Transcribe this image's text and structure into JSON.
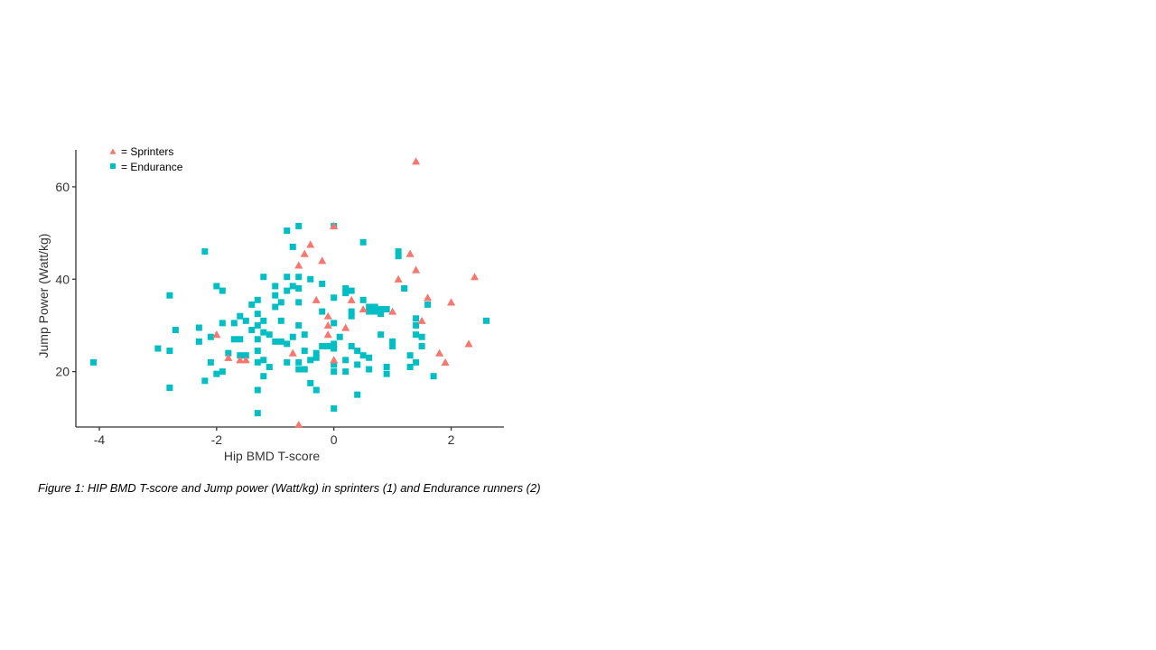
{
  "caption": "Figure 1: HIP BMD T-score and Jump power (Watt/kg) in sprinters (1) and Endurance runners (2)",
  "chart_data": {
    "type": "scatter",
    "xlabel": "Hip BMD T-score",
    "ylabel": "Jump Power (Watt/kg)",
    "xlim": [
      -4.4,
      2.9
    ],
    "ylim": [
      8,
      68
    ],
    "xticks": [
      -4,
      -2,
      0,
      2
    ],
    "yticks": [
      20,
      40,
      60
    ],
    "grid": false,
    "legend_position": "top-left",
    "series": [
      {
        "name": "= Sprinters",
        "marker": "triangle",
        "color": "#F8766D",
        "points": [
          [
            1.4,
            65.5
          ],
          [
            0,
            51.5
          ],
          [
            -0.4,
            47.5
          ],
          [
            -0.5,
            45.5
          ],
          [
            -0.2,
            44
          ],
          [
            -0.6,
            43
          ],
          [
            1.3,
            45.5
          ],
          [
            1.4,
            42
          ],
          [
            1.1,
            40
          ],
          [
            2.4,
            40.5
          ],
          [
            1.6,
            36
          ],
          [
            2.0,
            35
          ],
          [
            -0.3,
            35.5
          ],
          [
            0.3,
            35.5
          ],
          [
            0.5,
            33.5
          ],
          [
            1.0,
            33
          ],
          [
            -0.1,
            32
          ],
          [
            1.5,
            31
          ],
          [
            -0.1,
            30
          ],
          [
            0.2,
            29.5
          ],
          [
            -2.0,
            28
          ],
          [
            -0.1,
            28
          ],
          [
            2.3,
            26
          ],
          [
            -0.7,
            24
          ],
          [
            1.8,
            24
          ],
          [
            -1.8,
            23
          ],
          [
            -1.6,
            22.5
          ],
          [
            -1.5,
            22.5
          ],
          [
            0,
            22.5
          ],
          [
            1.9,
            22
          ],
          [
            -0.6,
            8.5
          ]
        ]
      },
      {
        "name": "= Endurance",
        "marker": "square",
        "color": "#00BFC4",
        "points": [
          [
            0,
            51.5
          ],
          [
            -0.6,
            51.5
          ],
          [
            -0.8,
            50.5
          ],
          [
            0.5,
            48
          ],
          [
            -0.7,
            47
          ],
          [
            -2.2,
            46
          ],
          [
            1.1,
            46
          ],
          [
            1.1,
            45
          ],
          [
            -0.8,
            40.5
          ],
          [
            -0.6,
            40.5
          ],
          [
            -1.2,
            40.5
          ],
          [
            -0.4,
            40
          ],
          [
            -0.2,
            39
          ],
          [
            -1.0,
            38.5
          ],
          [
            -2.0,
            38.5
          ],
          [
            -0.7,
            38.5
          ],
          [
            -0.6,
            38
          ],
          [
            0.2,
            38
          ],
          [
            1.2,
            38
          ],
          [
            -0.8,
            37.5
          ],
          [
            -1.9,
            37.5
          ],
          [
            0.3,
            37.5
          ],
          [
            0.2,
            37
          ],
          [
            -2.8,
            36.5
          ],
          [
            -1.0,
            36.5
          ],
          [
            0,
            36
          ],
          [
            0.5,
            35.5
          ],
          [
            -1.3,
            35.5
          ],
          [
            -0.6,
            35
          ],
          [
            -0.9,
            35
          ],
          [
            1.6,
            34.5
          ],
          [
            -1.4,
            34.5
          ],
          [
            -1.0,
            34
          ],
          [
            0.6,
            34
          ],
          [
            0.7,
            34
          ],
          [
            0.8,
            33.5
          ],
          [
            0.9,
            33.5
          ],
          [
            -0.2,
            33
          ],
          [
            0.3,
            33
          ],
          [
            0.6,
            33
          ],
          [
            0.7,
            33
          ],
          [
            0.8,
            32.5
          ],
          [
            -1.3,
            32.5
          ],
          [
            -1.6,
            32
          ],
          [
            0.3,
            32
          ],
          [
            1.4,
            31.5
          ],
          [
            -1.5,
            31
          ],
          [
            -0.9,
            31
          ],
          [
            -1.2,
            31
          ],
          [
            -1.7,
            30.5
          ],
          [
            -1.9,
            30.5
          ],
          [
            -1.3,
            30
          ],
          [
            -0.6,
            30
          ],
          [
            1.4,
            30
          ],
          [
            2.6,
            31
          ],
          [
            0,
            30.5
          ],
          [
            -2.3,
            29.5
          ],
          [
            -2.7,
            29
          ],
          [
            -1.4,
            29
          ],
          [
            -1.2,
            28.5
          ],
          [
            -0.5,
            28
          ],
          [
            0.8,
            28
          ],
          [
            1.4,
            28
          ],
          [
            -1.1,
            28
          ],
          [
            -0.7,
            27.5
          ],
          [
            1.5,
            27.5
          ],
          [
            -2.1,
            27.5
          ],
          [
            0.1,
            27.5
          ],
          [
            -1.6,
            27
          ],
          [
            -1.7,
            27
          ],
          [
            -1.3,
            27
          ],
          [
            -0.9,
            26.5
          ],
          [
            -1.0,
            26.5
          ],
          [
            1.0,
            26.5
          ],
          [
            -2.3,
            26.5
          ],
          [
            -0.8,
            26
          ],
          [
            0,
            26
          ],
          [
            0.3,
            25.5
          ],
          [
            1.0,
            25.5
          ],
          [
            -0.2,
            25.5
          ],
          [
            0,
            25
          ],
          [
            -0.1,
            25.5
          ],
          [
            1.5,
            25.5
          ],
          [
            -3.0,
            25
          ],
          [
            -2.8,
            24.5
          ],
          [
            -1.3,
            24.5
          ],
          [
            -0.5,
            24.5
          ],
          [
            0.4,
            24.5
          ],
          [
            -1.8,
            24
          ],
          [
            -1.5,
            23.5
          ],
          [
            -1.6,
            23.5
          ],
          [
            -0.3,
            24
          ],
          [
            0.5,
            23.5
          ],
          [
            0.6,
            23
          ],
          [
            1.3,
            23.5
          ],
          [
            -0.3,
            23
          ],
          [
            -0.4,
            22.5
          ],
          [
            0.2,
            22.5
          ],
          [
            -1.2,
            22.5
          ],
          [
            -1.3,
            22
          ],
          [
            -0.8,
            22
          ],
          [
            -0.6,
            22
          ],
          [
            -4.1,
            22
          ],
          [
            -2.1,
            22
          ],
          [
            1.4,
            22
          ],
          [
            0.4,
            21.5
          ],
          [
            0,
            21.5
          ],
          [
            -1.1,
            21
          ],
          [
            1.3,
            21
          ],
          [
            0.9,
            21
          ],
          [
            -0.5,
            20.5
          ],
          [
            -0.6,
            20.5
          ],
          [
            0.6,
            20.5
          ],
          [
            0,
            20
          ],
          [
            0.2,
            20
          ],
          [
            -1.9,
            20
          ],
          [
            -2.0,
            19.5
          ],
          [
            0.9,
            19.5
          ],
          [
            -1.2,
            19
          ],
          [
            1.7,
            19
          ],
          [
            -2.2,
            18
          ],
          [
            -0.4,
            17.5
          ],
          [
            -2.8,
            16.5
          ],
          [
            -1.3,
            16
          ],
          [
            -0.3,
            16
          ],
          [
            0.4,
            15
          ],
          [
            0,
            12
          ],
          [
            -1.3,
            11
          ]
        ]
      }
    ]
  }
}
